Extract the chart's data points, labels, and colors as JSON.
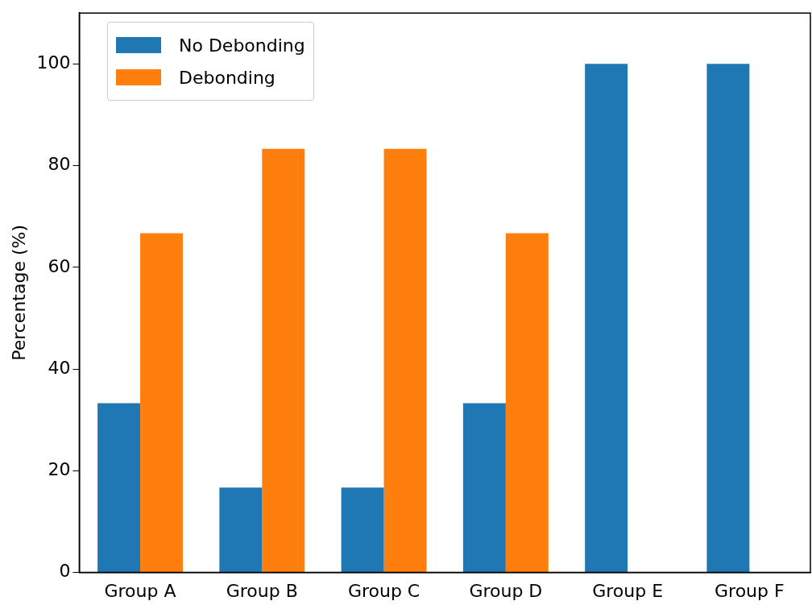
{
  "chart_data": {
    "type": "bar",
    "ylabel": "Percentage (%)",
    "categories": [
      "Group A",
      "Group B",
      "Group C",
      "Group D",
      "Group E",
      "Group F"
    ],
    "series": [
      {
        "name": "No Debonding",
        "color": "#1f77b4",
        "values": [
          33.3,
          16.7,
          16.7,
          33.3,
          100,
          100
        ]
      },
      {
        "name": "Debonding",
        "color": "#ff7f0e",
        "values": [
          66.7,
          83.3,
          83.3,
          66.7,
          0,
          0
        ]
      }
    ],
    "ylim": [
      0,
      110
    ],
    "yticks": [
      0,
      20,
      40,
      60,
      80,
      100
    ],
    "grid": false,
    "legend": "top left"
  }
}
